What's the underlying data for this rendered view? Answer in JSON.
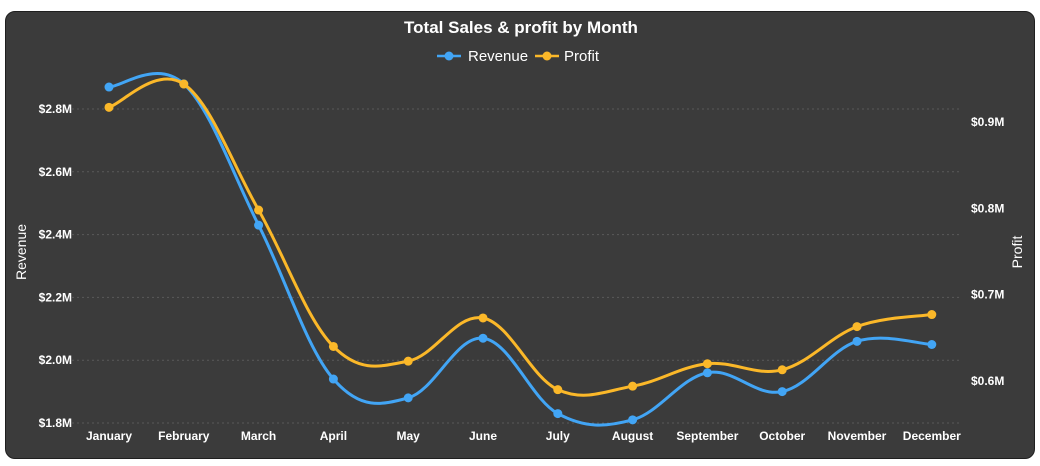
{
  "colors": {
    "background": "#3b3b3b",
    "revenue": "#42a5f5",
    "profit": "#fbb829",
    "text": "#ffffff",
    "grid": "#5a5a5a"
  },
  "chart_data": {
    "type": "line",
    "title": "Total Sales & profit by Month",
    "categories": [
      "January",
      "February",
      "March",
      "April",
      "May",
      "June",
      "July",
      "August",
      "September",
      "October",
      "November",
      "December"
    ],
    "legend_position": "top-center",
    "grid": true,
    "y_left": {
      "label": "Revenue",
      "ticks": [
        "$1.8M",
        "$2.0M",
        "$2.2M",
        "$2.4M",
        "$2.6M",
        "$2.8M"
      ],
      "range": [
        1.8,
        3.0
      ]
    },
    "y_right": {
      "label": "Profit",
      "ticks": [
        "$0.6M",
        "$0.7M",
        "$0.8M",
        "$0.9M"
      ],
      "range": [
        0.55,
        0.975
      ]
    },
    "series": [
      {
        "name": "Revenue",
        "axis": "left",
        "color": "#42a5f5",
        "values": [
          2.87,
          2.88,
          2.43,
          1.94,
          1.88,
          2.07,
          1.83,
          1.81,
          1.96,
          1.9,
          2.06,
          2.05
        ]
      },
      {
        "name": "Profit",
        "axis": "right",
        "color": "#fbb829",
        "values": [
          0.917,
          0.944,
          0.798,
          0.64,
          0.623,
          0.673,
          0.59,
          0.594,
          0.62,
          0.613,
          0.663,
          0.677
        ]
      }
    ]
  }
}
